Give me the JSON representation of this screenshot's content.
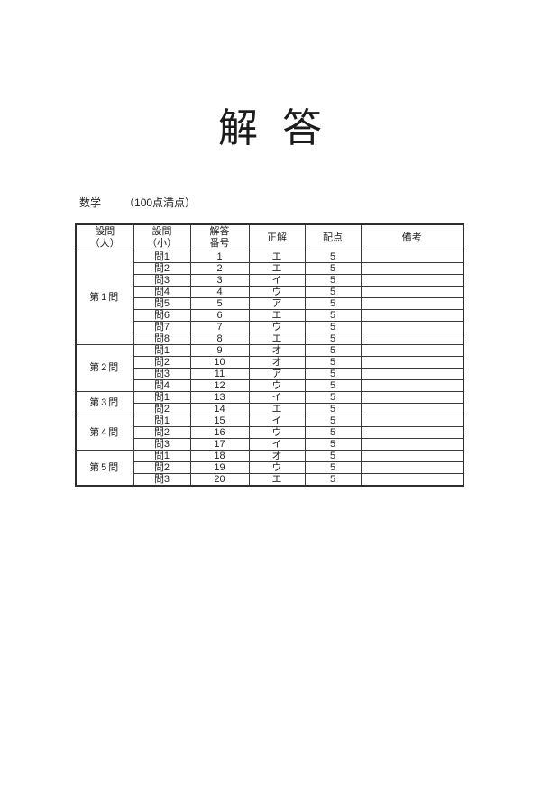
{
  "page": {
    "title": "解 答",
    "subject": "数学",
    "points_note": "（100点満点）"
  },
  "table": {
    "headers": [
      "設問\n（大）",
      "設問\n（小）",
      "解答\n番号",
      "正解",
      "配点",
      "備考"
    ],
    "sections": [
      {
        "label": "第1問",
        "rows": [
          {
            "sub": "問1",
            "num": "1",
            "answer": "エ",
            "points": "5",
            "remarks": ""
          },
          {
            "sub": "問2",
            "num": "2",
            "answer": "エ",
            "points": "5",
            "remarks": ""
          },
          {
            "sub": "問3",
            "num": "3",
            "answer": "イ",
            "points": "5",
            "remarks": ""
          },
          {
            "sub": "問4",
            "num": "4",
            "answer": "ウ",
            "points": "5",
            "remarks": ""
          },
          {
            "sub": "問5",
            "num": "5",
            "answer": "ア",
            "points": "5",
            "remarks": ""
          },
          {
            "sub": "問6",
            "num": "6",
            "answer": "エ",
            "points": "5",
            "remarks": ""
          },
          {
            "sub": "問7",
            "num": "7",
            "answer": "ウ",
            "points": "5",
            "remarks": ""
          },
          {
            "sub": "問8",
            "num": "8",
            "answer": "エ",
            "points": "5",
            "remarks": ""
          }
        ]
      },
      {
        "label": "第2問",
        "rows": [
          {
            "sub": "問1",
            "num": "9",
            "answer": "オ",
            "points": "5",
            "remarks": ""
          },
          {
            "sub": "問2",
            "num": "10",
            "answer": "オ",
            "points": "5",
            "remarks": ""
          },
          {
            "sub": "問3",
            "num": "11",
            "answer": "ア",
            "points": "5",
            "remarks": ""
          },
          {
            "sub": "問4",
            "num": "12",
            "answer": "ウ",
            "points": "5",
            "remarks": ""
          }
        ]
      },
      {
        "label": "第3問",
        "rows": [
          {
            "sub": "問1",
            "num": "13",
            "answer": "イ",
            "points": "5",
            "remarks": ""
          },
          {
            "sub": "問2",
            "num": "14",
            "answer": "エ",
            "points": "5",
            "remarks": ""
          }
        ]
      },
      {
        "label": "第4問",
        "rows": [
          {
            "sub": "問1",
            "num": "15",
            "answer": "イ",
            "points": "5",
            "remarks": ""
          },
          {
            "sub": "問2",
            "num": "16",
            "answer": "ウ",
            "points": "5",
            "remarks": ""
          },
          {
            "sub": "問3",
            "num": "17",
            "answer": "イ",
            "points": "5",
            "remarks": ""
          }
        ]
      },
      {
        "label": "第5問",
        "rows": [
          {
            "sub": "問1",
            "num": "18",
            "answer": "オ",
            "points": "5",
            "remarks": ""
          },
          {
            "sub": "問2",
            "num": "19",
            "answer": "ウ",
            "points": "5",
            "remarks": ""
          },
          {
            "sub": "問3",
            "num": "20",
            "answer": "エ",
            "points": "5",
            "remarks": ""
          }
        ]
      }
    ]
  }
}
